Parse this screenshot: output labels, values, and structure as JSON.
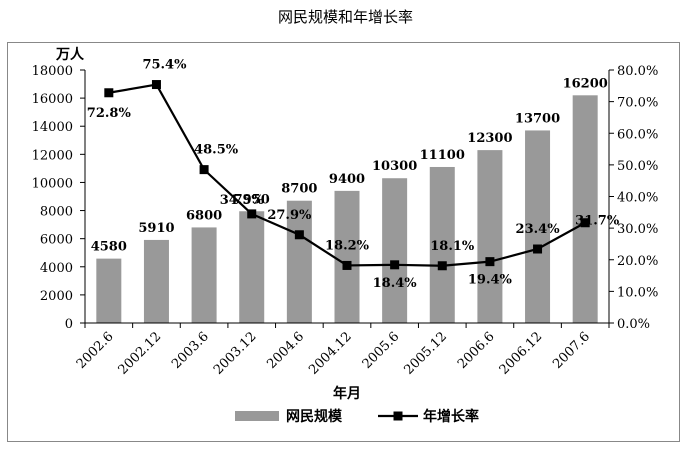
{
  "chart_data": {
    "type": "bar+line",
    "title": "网民规模和年增长率",
    "categories": [
      "2002.6",
      "2002.12",
      "2003.6",
      "2003.12",
      "2004.6",
      "2004.12",
      "2005.6",
      "2005.12",
      "2006.6",
      "2006.12",
      "2007.6"
    ],
    "xlabel": "年月",
    "ylabel_left": "万人",
    "ylim_left": [
      0,
      18000
    ],
    "yticks_left": [
      "0",
      "2000",
      "4000",
      "6000",
      "8000",
      "10000",
      "12000",
      "14000",
      "16000",
      "18000"
    ],
    "ylim_right": [
      0,
      80
    ],
    "yticks_right": [
      "0.0%",
      "10.0%",
      "20.0%",
      "30.0%",
      "40.0%",
      "50.0%",
      "60.0%",
      "70.0%",
      "80.0%"
    ],
    "legend_position": "bottom",
    "grid": false,
    "series": [
      {
        "name": "网民规模",
        "kind": "bar",
        "axis": "left",
        "color": "#999999",
        "values": [
          4580,
          5910,
          6800,
          7950,
          8700,
          9400,
          10300,
          11100,
          12300,
          13700,
          16200
        ],
        "labels": [
          "4580",
          "5910",
          "6800",
          "7950",
          "8700",
          "9400",
          "10300",
          "11100",
          "12300",
          "13700",
          "16200"
        ]
      },
      {
        "name": "年增长率",
        "kind": "line",
        "axis": "right",
        "color": "#000000",
        "marker": "square",
        "values": [
          72.8,
          75.4,
          48.5,
          34.5,
          27.9,
          18.2,
          18.4,
          18.1,
          19.4,
          23.4,
          31.7
        ],
        "labels": [
          "72.8%",
          "75.4%",
          "48.5%",
          "34.5%",
          "27.9%",
          "18.2%",
          "18.4%",
          "18.1%",
          "19.4%",
          "23.4%",
          "31.7%"
        ]
      }
    ]
  }
}
